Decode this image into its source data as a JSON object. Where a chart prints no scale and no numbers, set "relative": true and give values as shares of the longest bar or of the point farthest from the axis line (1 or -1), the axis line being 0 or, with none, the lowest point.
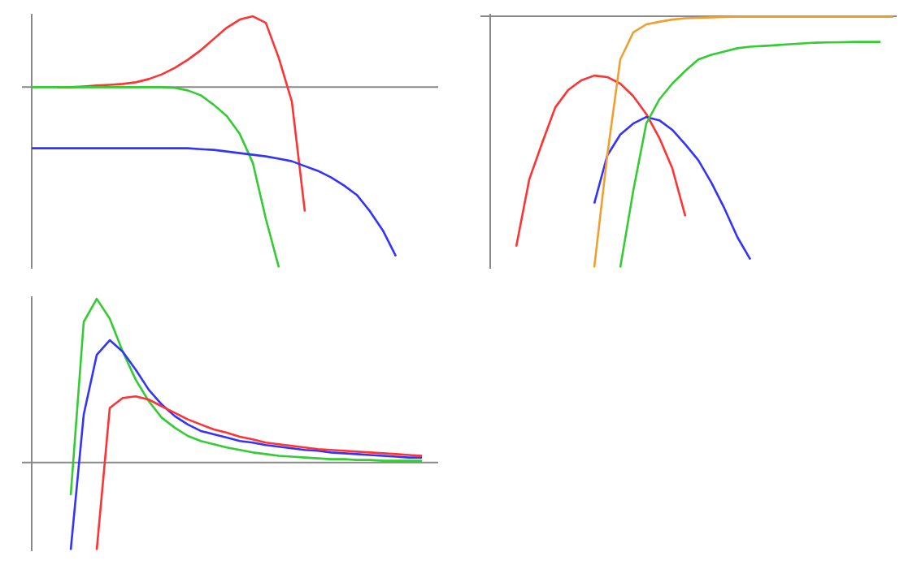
{
  "chart_data": [
    {
      "type": "line",
      "relative": true,
      "categories": [
        null,
        null,
        null,
        null,
        null,
        null,
        null,
        null,
        null,
        null,
        null,
        null,
        null,
        null,
        null,
        null,
        null,
        null,
        null,
        null,
        null,
        null,
        null,
        null,
        null,
        null,
        null,
        null,
        null,
        null,
        null,
        null
      ],
      "series": [
        {
          "color": "#ff3333",
          "values": [
            null,
            null,
            0,
            0,
            0.004,
            0.009,
            0.013,
            0.018,
            0.027,
            0.045,
            0.071,
            0.107,
            0.152,
            0.205,
            0.268,
            0.33,
            0.375,
            0.393,
            0.357,
            0.161,
            -0.08,
            -0.69,
            null,
            null,
            null,
            null,
            null,
            null,
            null,
            null,
            null,
            null
          ]
        },
        {
          "color": "#33cc33",
          "values": [
            0,
            0,
            0,
            0,
            0,
            0,
            0,
            0,
            0,
            0,
            0,
            -0.004,
            -0.018,
            -0.045,
            -0.098,
            -0.16,
            -0.26,
            -0.42,
            -0.73,
            -1,
            null,
            null,
            null,
            null,
            null,
            null,
            null,
            null,
            null,
            null,
            null,
            null
          ]
        },
        {
          "color": "#3333ff",
          "values": [
            -0.339,
            -0.339,
            -0.339,
            -0.339,
            -0.339,
            -0.339,
            -0.339,
            -0.339,
            -0.339,
            -0.339,
            -0.339,
            -0.339,
            -0.339,
            -0.344,
            -0.348,
            -0.357,
            -0.366,
            -0.375,
            -0.384,
            -0.397,
            -0.411,
            -0.438,
            -0.464,
            -0.5,
            -0.545,
            -0.598,
            -0.688,
            -0.795,
            -0.938,
            null,
            null,
            null
          ]
        }
      ]
    },
    {
      "type": "line",
      "relative": true,
      "categories": [
        null,
        null,
        null,
        null,
        null,
        null,
        null,
        null,
        null,
        null,
        null,
        null,
        null,
        null,
        null,
        null,
        null,
        null,
        null,
        null,
        null,
        null,
        null,
        null,
        null,
        null,
        null,
        null,
        null,
        null,
        null,
        null
      ],
      "series": [
        {
          "color": "#ff3333",
          "values": [
            null,
            null,
            -0.917,
            -0.65,
            -0.503,
            -0.363,
            -0.293,
            -0.255,
            -0.236,
            -0.242,
            -0.268,
            -0.318,
            -0.389,
            -0.484,
            -0.605,
            -0.796,
            null,
            null,
            null,
            null,
            null,
            null,
            null,
            null,
            null,
            null,
            null,
            null,
            null,
            null,
            null,
            null
          ]
        },
        {
          "color": "#3333ff",
          "values": [
            null,
            null,
            null,
            null,
            null,
            null,
            null,
            null,
            -0.745,
            -0.554,
            -0.471,
            -0.427,
            -0.401,
            -0.414,
            -0.452,
            -0.51,
            -0.573,
            -0.662,
            -0.764,
            -0.879,
            -0.968,
            null,
            null,
            null,
            null,
            null,
            null,
            null,
            null,
            null,
            null,
            null
          ]
        },
        {
          "color": "#f0a030",
          "values": [
            null,
            null,
            null,
            null,
            null,
            null,
            null,
            null,
            -1,
            -0.554,
            -0.172,
            -0.064,
            -0.032,
            -0.022,
            -0.013,
            -0.008,
            -0.006,
            -0.004,
            -0.003,
            -0.002,
            -0.002,
            -0.002,
            -0.002,
            -0.002,
            -0.002,
            -0.002,
            -0.002,
            -0.002,
            -0.002,
            -0.002,
            -0.002,
            -0.002
          ]
        },
        {
          "color": "#33cc33",
          "values": [
            null,
            null,
            null,
            null,
            null,
            null,
            null,
            null,
            null,
            null,
            -1,
            -0.694,
            -0.427,
            -0.331,
            -0.268,
            -0.217,
            -0.172,
            -0.153,
            -0.14,
            -0.127,
            -0.121,
            -0.118,
            -0.115,
            -0.111,
            -0.108,
            -0.105,
            -0.104,
            -0.103,
            -0.102,
            -0.102,
            -0.102,
            null
          ]
        }
      ]
    },
    {
      "type": "line",
      "relative": true,
      "categories": [
        null,
        null,
        null,
        null,
        null,
        null,
        null,
        null,
        null,
        null,
        null,
        null,
        null,
        null,
        null,
        null,
        null,
        null,
        null,
        null,
        null,
        null,
        null,
        null,
        null,
        null,
        null,
        null,
        null,
        null,
        null,
        null
      ],
      "series": [
        {
          "color": "#33cc33",
          "values": [
            null,
            null,
            null,
            -0.2,
            0.859,
            1.0,
            0.879,
            0.677,
            0.505,
            0.374,
            0.273,
            0.212,
            0.162,
            0.131,
            0.111,
            0.091,
            0.076,
            0.061,
            0.051,
            0.04,
            0.035,
            0.03,
            0.025,
            0.02,
            0.02,
            0.015,
            0.015,
            0.01,
            0.01,
            0.01,
            0.01,
            null
          ]
        },
        {
          "color": "#3333ff",
          "values": [
            null,
            null,
            null,
            -0.535,
            0.293,
            0.657,
            0.747,
            0.677,
            0.566,
            0.444,
            0.354,
            0.283,
            0.232,
            0.192,
            0.172,
            0.152,
            0.131,
            0.121,
            0.106,
            0.096,
            0.086,
            0.076,
            0.071,
            0.061,
            0.056,
            0.051,
            0.045,
            0.04,
            0.035,
            0.03,
            0.03,
            null
          ]
        },
        {
          "color": "#ff3333",
          "values": [
            null,
            null,
            null,
            null,
            null,
            -0.535,
            0.333,
            0.394,
            0.404,
            0.384,
            0.343,
            0.303,
            0.263,
            0.232,
            0.202,
            0.182,
            0.157,
            0.141,
            0.121,
            0.111,
            0.101,
            0.091,
            0.081,
            0.076,
            0.071,
            0.066,
            0.061,
            0.056,
            0.051,
            0.045,
            0.04,
            null
          ]
        }
      ]
    }
  ]
}
